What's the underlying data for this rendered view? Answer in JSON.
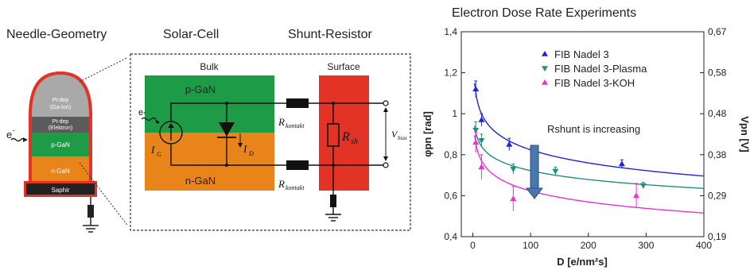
{
  "headers": {
    "needle": "Needle-Geometry",
    "solar": "Solar-Cell",
    "shunt": "Shunt-Resistor",
    "chart_title": "Electron Dose Rate Experiments"
  },
  "needle": {
    "layers": [
      {
        "label": "Pt-dep\n(Ga-Ion)",
        "color": "#a9a9a9"
      },
      {
        "label": "Pt-dep\n(Elektron)",
        "color": "#5b5b5b"
      },
      {
        "label": "p-GaN",
        "color": "#1e9b46"
      },
      {
        "label": "n-GaN",
        "color": "#e8841a"
      },
      {
        "label": "Saphir",
        "color": "#222222"
      }
    ],
    "electron_label": "e-",
    "outline_color": "#e23326"
  },
  "circuit": {
    "bulk_label": "Bulk",
    "p_label": "p-GaN",
    "n_label": "n-GaN",
    "surface_label": "Surface",
    "electron_label": "e-",
    "ig_label": "I",
    "ig_sub": "G",
    "id_label": "I",
    "id_sub": "D",
    "rkontakt_top": "R",
    "rkontakt_top_sub": "kontakt",
    "rkontakt_bottom": "R",
    "rkontakt_bottom_sub": "kontakt",
    "rsh_label": "R",
    "rsh_sub": "sh",
    "vbias_label": "V",
    "vbias_sub": "bias",
    "colors": {
      "p": "#1e9b46",
      "n": "#e8841a",
      "surface": "#e23326"
    }
  },
  "chart_data": {
    "type": "scatter",
    "title": "Electron Dose Rate Experiments",
    "xlabel": "D [e/nm²s]",
    "ylabel_left": "φpn [rad]",
    "ylabel_right": "Vpn [V]",
    "xlim": [
      -20,
      400
    ],
    "ylim": [
      0.4,
      1.4
    ],
    "x_ticks": [
      "0",
      "100",
      "200",
      "300",
      "400"
    ],
    "y_ticks": [
      "0,4",
      "0,6",
      "0,8",
      "1",
      "1,2",
      "1,4"
    ],
    "y2_ticks": [
      "0,19",
      "0,29",
      "0,38",
      "0,48",
      "0,58",
      "0,67"
    ],
    "annotation": "Rshunt is increasing",
    "series": [
      {
        "name": "FIB Nadel 3",
        "color": "#1f24d6",
        "marker": "up",
        "x": [
          5,
          15,
          63,
          258
        ],
        "y": [
          1.12,
          0.97,
          0.85,
          0.755
        ],
        "err": [
          0.04,
          0.03,
          0.03,
          0.02
        ],
        "fit_a": 1.25,
        "fit_b": 0.0925
      },
      {
        "name": "FIB Nadel 3-Plasma",
        "color": "#1f8f7f",
        "marker": "down",
        "x": [
          5,
          15,
          70,
          143,
          295
        ],
        "y": [
          0.92,
          0.87,
          0.73,
          0.72,
          0.65
        ],
        "err": [
          0.04,
          0.03,
          0.025,
          0.02,
          0.015
        ],
        "fit_a": 1.01,
        "fit_b": 0.0625
      },
      {
        "name": "FIB Nadel 3-KOH",
        "color": "#ee2fd6",
        "marker": "up",
        "x": [
          5,
          15,
          70,
          283
        ],
        "y": [
          0.86,
          0.74,
          0.585,
          0.6
        ],
        "err": [
          0.05,
          0.06,
          0.06,
          0.06
        ],
        "fit_a": 0.98,
        "fit_b": 0.0775
      }
    ]
  }
}
